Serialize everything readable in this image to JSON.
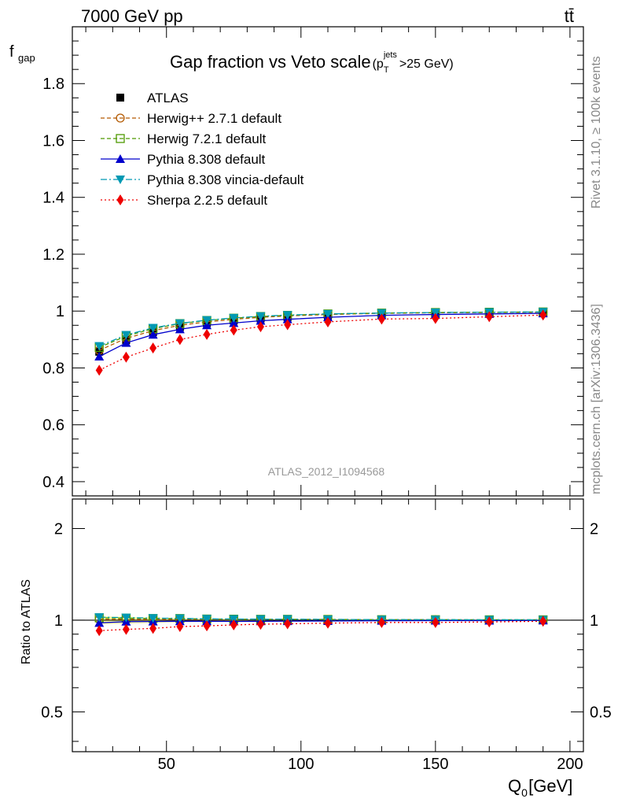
{
  "header": {
    "energy_label": "7000 GeV pp",
    "process_label": "tt̄"
  },
  "side_labels": {
    "rivet": "Rivet 3.1.10, ≥ 100k events",
    "mcplots": "mcplots.cern.ch [arXiv:1306.3436]"
  },
  "watermark": "ATLAS_2012_I1094568",
  "chart_data": [
    {
      "type": "line",
      "title": "Gap fraction vs Veto scale",
      "title_suffix": {
        "base": "(p",
        "sub": "T",
        "sup": "jets",
        "tail": ">25 GeV)"
      },
      "ylabel": {
        "base": "f",
        "sub": "gap"
      },
      "xlim": [
        15,
        205
      ],
      "ylim": [
        0.35,
        2.0
      ],
      "yticks": [
        0.4,
        0.6,
        0.8,
        1,
        1.2,
        1.4,
        1.6,
        1.8
      ],
      "ytick_labels": [
        "0.4",
        "0.6",
        "0.8",
        "1",
        "1.2",
        "1.4",
        "1.6",
        "1.8"
      ],
      "legend_position": "top-left",
      "x": [
        25,
        35,
        45,
        55,
        65,
        75,
        85,
        95,
        110,
        130,
        150,
        170,
        190
      ],
      "series": [
        {
          "name": "ATLAS",
          "color": "#000000",
          "marker": "square-filled",
          "line": "none",
          "values": [
            0.857,
            0.898,
            0.926,
            0.944,
            0.958,
            0.967,
            0.974,
            0.978,
            0.984,
            0.989,
            0.991,
            0.993,
            0.994
          ]
        },
        {
          "name": "Herwig++ 2.7.1 default",
          "color": "#b35900",
          "marker": "circle-open",
          "line": "dashed",
          "values": [
            0.862,
            0.904,
            0.931,
            0.95,
            0.962,
            0.971,
            0.978,
            0.983,
            0.988,
            0.992,
            0.994,
            0.995,
            0.996
          ]
        },
        {
          "name": "Herwig 7.2.1 default",
          "color": "#4d9900",
          "marker": "square-open",
          "line": "dashed",
          "values": [
            0.872,
            0.912,
            0.938,
            0.956,
            0.967,
            0.975,
            0.981,
            0.985,
            0.99,
            0.993,
            0.995,
            0.996,
            0.997
          ]
        },
        {
          "name": "Pythia 8.308 default",
          "color": "#0000cc",
          "marker": "triangle-up",
          "line": "solid",
          "values": [
            0.84,
            0.888,
            0.917,
            0.936,
            0.95,
            0.958,
            0.966,
            0.971,
            0.978,
            0.985,
            0.988,
            0.99,
            0.992
          ]
        },
        {
          "name": "Pythia 8.308 vincia-default",
          "color": "#0099b3",
          "marker": "triangle-down",
          "line": "dashdot",
          "values": [
            0.877,
            0.916,
            0.941,
            0.957,
            0.968,
            0.976,
            0.982,
            0.986,
            0.99,
            0.993,
            0.995,
            0.996,
            0.997
          ]
        },
        {
          "name": "Sherpa 2.2.5 default",
          "color": "#ee0000",
          "marker": "diamond",
          "line": "dotted",
          "values": [
            0.792,
            0.838,
            0.87,
            0.9,
            0.918,
            0.933,
            0.945,
            0.952,
            0.962,
            0.972,
            0.974,
            0.98,
            0.986
          ]
        }
      ]
    },
    {
      "type": "line",
      "ylabel": "Ratio to ATLAS",
      "xlabel": {
        "base": "Q",
        "sub": "0",
        "tail": " [GeV]"
      },
      "xlim": [
        15,
        205
      ],
      "ylim": [
        0.37,
        2.5
      ],
      "scale": "log",
      "xticks": [
        50,
        100,
        150,
        200
      ],
      "xtick_labels": [
        "50",
        "100",
        "150",
        "200"
      ],
      "yticks": [
        0.5,
        1,
        2
      ],
      "ytick_labels": [
        "0.5",
        "1",
        "2"
      ],
      "band": {
        "color": "#ffff66",
        "values_low": [
          0.97,
          0.975,
          0.98,
          0.985,
          0.988,
          0.99,
          0.992,
          0.993,
          0.994,
          0.995,
          0.996,
          0.997,
          0.997
        ],
        "values_high": [
          1.03,
          1.025,
          1.02,
          1.015,
          1.012,
          1.01,
          1.008,
          1.007,
          1.006,
          1.005,
          1.004,
          1.003,
          1.003
        ]
      },
      "x": [
        25,
        35,
        45,
        55,
        65,
        75,
        85,
        95,
        110,
        130,
        150,
        170,
        190
      ],
      "series": [
        {
          "name": "Herwig++ 2.7.1 default",
          "color": "#b35900",
          "marker": "circle-open",
          "line": "dashed",
          "values": [
            1.006,
            1.007,
            1.005,
            1.006,
            1.004,
            1.004,
            1.004,
            1.005,
            1.004,
            1.003,
            1.003,
            1.002,
            1.002
          ]
        },
        {
          "name": "Herwig 7.2.1 default",
          "color": "#4d9900",
          "marker": "square-open",
          "line": "dashed",
          "values": [
            1.018,
            1.016,
            1.013,
            1.013,
            1.009,
            1.008,
            1.007,
            1.007,
            1.006,
            1.004,
            1.004,
            1.003,
            1.003
          ]
        },
        {
          "name": "Pythia 8.308 default",
          "color": "#0000cc",
          "marker": "triangle-up",
          "line": "solid",
          "values": [
            0.98,
            0.989,
            0.99,
            0.992,
            0.992,
            0.991,
            0.992,
            0.993,
            0.994,
            0.996,
            0.997,
            0.997,
            0.998
          ]
        },
        {
          "name": "Pythia 8.308 vincia-default",
          "color": "#0099b3",
          "marker": "triangle-down",
          "line": "dashdot",
          "values": [
            1.023,
            1.02,
            1.016,
            1.014,
            1.01,
            1.009,
            1.008,
            1.008,
            1.006,
            1.004,
            1.004,
            1.003,
            1.003
          ]
        },
        {
          "name": "Sherpa 2.2.5 default",
          "color": "#ee0000",
          "marker": "diamond",
          "line": "dotted",
          "values": [
            0.924,
            0.933,
            0.94,
            0.953,
            0.958,
            0.965,
            0.97,
            0.973,
            0.978,
            0.983,
            0.983,
            0.987,
            0.992
          ]
        }
      ]
    }
  ]
}
